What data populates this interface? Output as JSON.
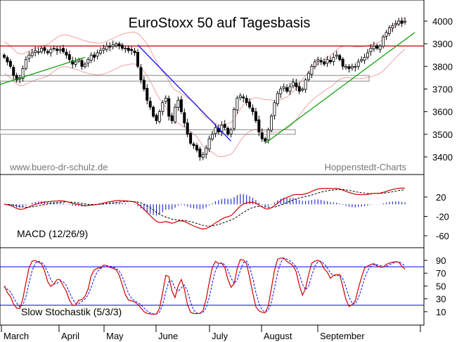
{
  "chart_data": {
    "type": "candlestick",
    "title": "EuroStoxx 50 auf Tagesbasis",
    "watermark_left": "www.buero-dr-schulz.de",
    "watermark_right": "Hoppenstedt-Charts",
    "x_months": [
      "March",
      "April",
      "May",
      "June",
      "July",
      "August",
      "September"
    ],
    "price_axis": {
      "ticks": [
        "3400",
        "3500",
        "3600",
        "3700",
        "3800",
        "3900",
        "4000"
      ],
      "ylim": [
        3340,
        4060
      ]
    },
    "price_series": [
      3840,
      3820,
      3800,
      3760,
      3740,
      3750,
      3790,
      3830,
      3850,
      3860,
      3870,
      3865,
      3880,
      3870,
      3860,
      3875,
      3880,
      3870,
      3875,
      3865,
      3850,
      3830,
      3810,
      3820,
      3830,
      3800,
      3810,
      3830,
      3850,
      3840,
      3860,
      3870,
      3880,
      3890,
      3885,
      3895,
      3900,
      3890,
      3880,
      3880,
      3870,
      3870,
      3860,
      3800,
      3740,
      3700,
      3650,
      3620,
      3580,
      3560,
      3600,
      3640,
      3660,
      3580,
      3560,
      3620,
      3650,
      3600,
      3550,
      3500,
      3460,
      3450,
      3430,
      3400,
      3410,
      3440,
      3480,
      3500,
      3530,
      3510,
      3540,
      3530,
      3500,
      3520,
      3610,
      3660,
      3670,
      3660,
      3640,
      3620,
      3600,
      3560,
      3510,
      3480,
      3470,
      3520,
      3580,
      3640,
      3680,
      3700,
      3710,
      3690,
      3710,
      3730,
      3710,
      3690,
      3700,
      3740,
      3770,
      3800,
      3820,
      3830,
      3820,
      3810,
      3830,
      3820,
      3840,
      3850,
      3830,
      3800,
      3800,
      3790,
      3800,
      3800,
      3820,
      3830,
      3840,
      3860,
      3880,
      3890,
      3880,
      3890,
      3930,
      3950,
      3970,
      3980,
      3990,
      4000,
      3990,
      4000
    ],
    "resistance_level": 3890,
    "support_zones": [
      {
        "from": 3735,
        "to": 3760
      },
      {
        "from": 3500,
        "to": 3520
      }
    ],
    "trendlines": [
      {
        "name": "downtrend",
        "color": "#0000ff"
      },
      {
        "name": "uptrend-1",
        "color": "#00a000"
      },
      {
        "name": "uptrend-2",
        "color": "#00a000"
      }
    ],
    "macd": {
      "label": "MACD (12/26/9)",
      "ticks": [
        "20",
        "-20",
        "-60"
      ],
      "ylim": [
        -80,
        52
      ],
      "macd_color": "#d00000",
      "signal_color": "#000000",
      "hist_color": "#2030d0"
    },
    "stochastic": {
      "label": "Slow Stochastik (5/3/3)",
      "ticks": [
        "10",
        "30",
        "50",
        "70",
        "90"
      ],
      "ylim": [
        0,
        100
      ],
      "upper_band": 80,
      "lower_band": 20,
      "k_color": "#d00000",
      "d_color": "#0000ff"
    }
  }
}
